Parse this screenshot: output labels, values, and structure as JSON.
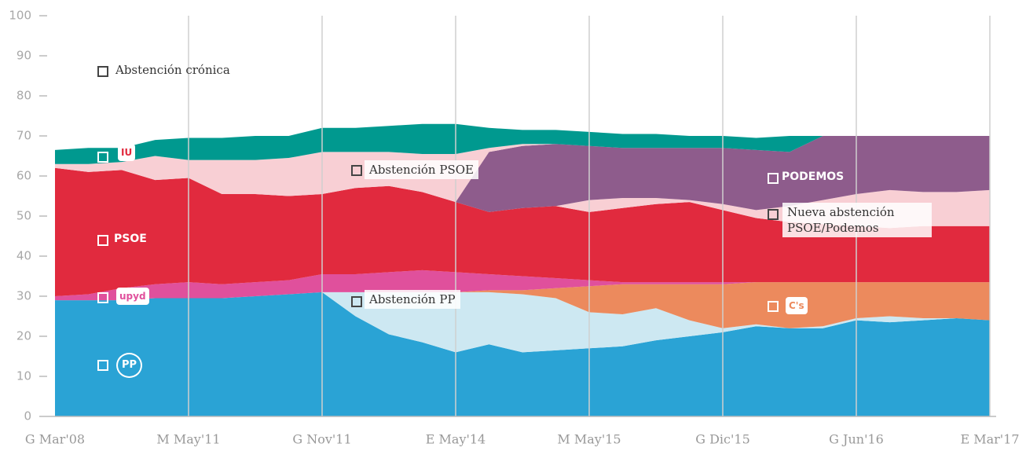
{
  "chart_data": {
    "type": "stacked_area",
    "categories": [
      "G Mar'08",
      null,
      null,
      null,
      "M May'11",
      null,
      null,
      null,
      "G Nov'11",
      null,
      null,
      null,
      "E May'14",
      null,
      null,
      null,
      "M May'15",
      null,
      null,
      null,
      "G Dic'15",
      null,
      null,
      null,
      "G Jun'16",
      null,
      null,
      null,
      "E Mar'17"
    ],
    "ylim": [
      0,
      100
    ],
    "yticks": [
      0,
      10,
      20,
      30,
      40,
      50,
      60,
      70,
      80,
      90,
      100
    ],
    "grid": true,
    "annotation": "Abstención crónica",
    "series": [
      {
        "name": "PP",
        "color": "#2aa3d5",
        "values": [
          29,
          29,
          29,
          29.5,
          29.5,
          29.5,
          30,
          30.5,
          31,
          25,
          20.5,
          18.5,
          16,
          18,
          16,
          16.5,
          17,
          17.5,
          19,
          20,
          21,
          22.5,
          22,
          22,
          24,
          23.5,
          24,
          24.5,
          24
        ]
      },
      {
        "name": "Abstención PP",
        "color": "#cde8f2",
        "values": [
          0,
          0,
          0,
          0,
          0,
          0,
          0,
          0,
          0,
          6,
          10.5,
          12.5,
          15,
          13,
          14.5,
          13,
          9,
          8,
          8,
          4,
          1,
          0.5,
          0,
          0.5,
          0.5,
          1.5,
          0.5,
          0,
          0
        ]
      },
      {
        "name": "C's",
        "color": "#ec8a5d",
        "values": [
          0,
          0,
          0,
          0,
          0,
          0,
          0,
          0,
          0,
          0,
          0,
          0,
          0,
          0.5,
          1,
          2.5,
          6.5,
          7.5,
          6,
          9,
          11,
          10.5,
          11.5,
          11,
          9,
          8.5,
          9,
          9,
          9.5
        ]
      },
      {
        "name": "upyd",
        "color": "#e0509c",
        "values": [
          1,
          1.5,
          3,
          3.5,
          4,
          3.5,
          3.5,
          3.5,
          4.5,
          4.5,
          5,
          5.5,
          5,
          4,
          3.5,
          2.5,
          1.5,
          0.5,
          0.5,
          0.5,
          0.5,
          0,
          0,
          0,
          0,
          0,
          0,
          0,
          0
        ]
      },
      {
        "name": "PSOE",
        "color": "#e12a3e",
        "values": [
          32,
          30.5,
          29.5,
          26,
          26,
          22.5,
          22,
          21,
          20,
          21.5,
          21.5,
          19.5,
          17.5,
          15.5,
          17,
          18,
          17,
          18.5,
          19.5,
          20,
          18,
          16,
          15,
          14.5,
          14,
          13.5,
          14,
          14,
          14
        ]
      },
      {
        "name": "Nueva abstención PSOE/Podemos",
        "color": "#f8cfd4",
        "values": [
          0,
          0,
          0,
          0,
          0,
          0,
          0,
          0,
          0,
          0,
          0,
          0,
          0,
          0,
          0,
          0,
          3,
          2.5,
          1.5,
          0.5,
          1.5,
          2,
          4,
          6,
          8,
          9.5,
          8.5,
          8.5,
          9
        ]
      },
      {
        "name": "PODEMOS",
        "color": "#8e5c8c",
        "values": [
          0,
          0,
          0,
          0,
          0,
          0,
          0,
          0,
          0,
          0,
          0,
          0,
          0,
          15,
          15.5,
          15.5,
          13.5,
          12.5,
          12.5,
          13,
          14,
          15,
          13.5,
          16,
          14.5,
          13.5,
          14,
          14,
          13.5
        ]
      },
      {
        "name": "Abstención PSOE",
        "color": "#f8cfd4",
        "values": [
          1,
          2,
          2,
          6,
          4.5,
          8.5,
          8.5,
          9.5,
          10.5,
          9,
          8.5,
          9.5,
          12,
          1,
          0.5,
          0,
          0,
          0,
          0,
          0,
          0,
          0,
          0,
          0,
          0,
          0,
          0,
          0,
          0
        ]
      },
      {
        "name": "IU",
        "color": "#00998f",
        "values": [
          3.5,
          4,
          3.5,
          4,
          5.5,
          5.5,
          6,
          5.5,
          6,
          6,
          6.5,
          7.5,
          7.5,
          5,
          3.5,
          3.5,
          3.5,
          3.5,
          3.5,
          3,
          3,
          3,
          4,
          0,
          0,
          0,
          0,
          0,
          0
        ]
      }
    ]
  }
}
